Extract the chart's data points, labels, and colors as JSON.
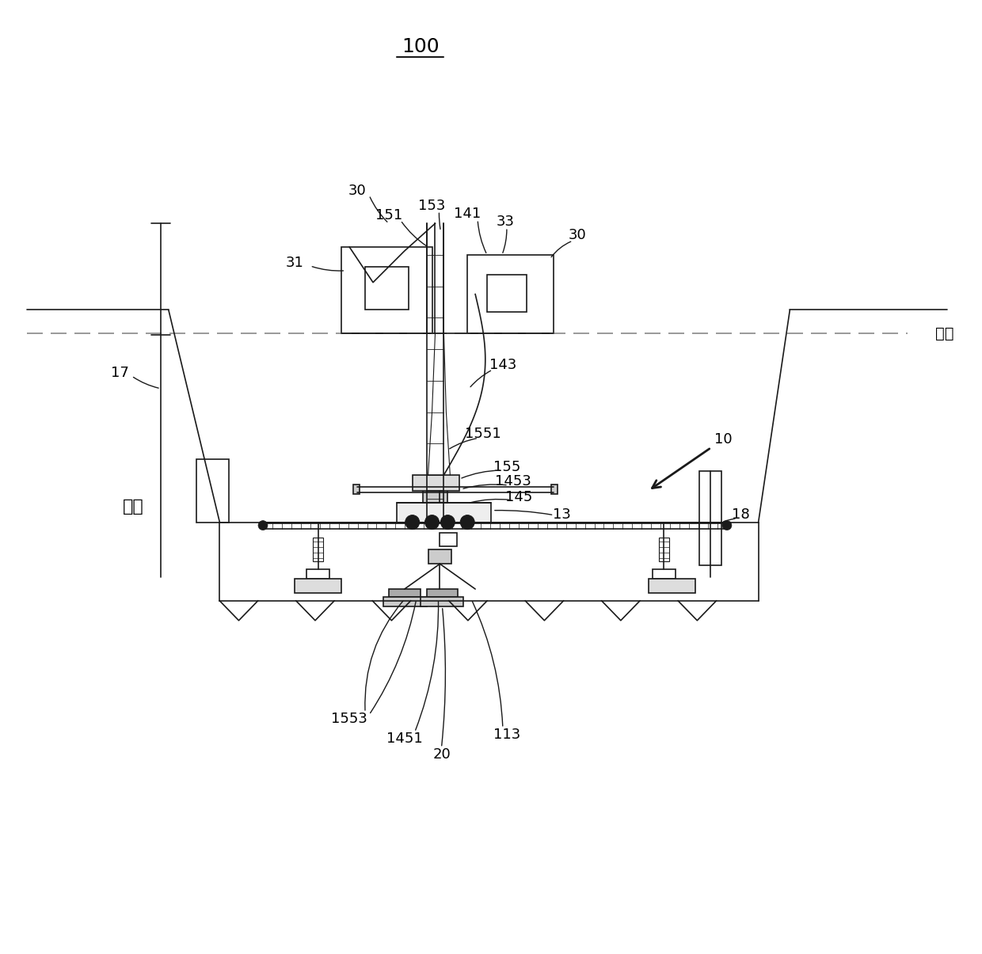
{
  "bg_color": "#ffffff",
  "line_color": "#1a1a1a",
  "title": "100",
  "water_label": "水面",
  "trench_label": "基槽"
}
